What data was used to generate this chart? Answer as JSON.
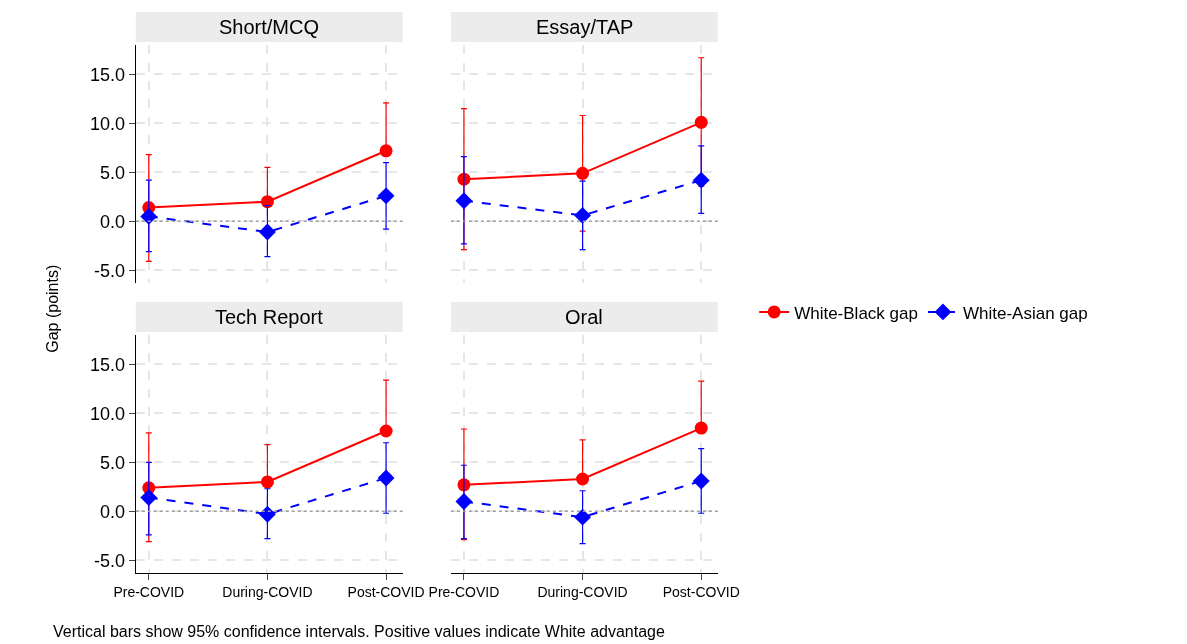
{
  "chart_data": [
    {
      "type": "line",
      "title": "Short/MCQ",
      "ylabel": "Gap (points)",
      "categories": [
        "Pre-COVID",
        "During-COVID",
        "Post-COVID"
      ],
      "ylim": [
        -6.3,
        18
      ],
      "yticks": [
        {
          "value": -5,
          "label": "-5.0"
        },
        {
          "value": 0,
          "label": "0.0"
        },
        {
          "value": 5,
          "label": "5.0"
        },
        {
          "value": 10,
          "label": "10.0"
        },
        {
          "value": 15,
          "label": "15.0"
        }
      ],
      "tick_labels": "y",
      "grid": true,
      "legend": "right",
      "ref_lines": [
        {
          "axis": "y",
          "value": 0,
          "color": "#a0a0a0",
          "line_style": "dotted"
        }
      ],
      "annotations": [
        "Vertical bars show 95% confidence intervals. Positive values indicate White advantage"
      ],
      "series": [
        {
          "name": "White-Black gap",
          "color": "#ff0000",
          "marker": "circle",
          "line_style": "solid",
          "values": [
            1.4,
            2.0,
            7.2
          ],
          "errors": [
            [
              -4.1,
              6.8
            ],
            [
              2.0,
              5.5
            ],
            [
              7.2,
              12.1
            ]
          ]
        },
        {
          "name": "White-Asian gap",
          "color": "#0000ff",
          "marker": "diamond",
          "line_style": "dashed",
          "values": [
            0.5,
            -1.1,
            2.6
          ],
          "errors": [
            [
              -3.1,
              4.2
            ],
            [
              -3.6,
              1.6
            ],
            [
              -0.8,
              6.0
            ]
          ]
        }
      ]
    },
    {
      "type": "line",
      "title": "Essay/TAP",
      "categories": [
        "Pre-COVID",
        "During-COVID",
        "Post-COVID"
      ],
      "ylim": [
        -6.3,
        18
      ],
      "yticks": [
        {
          "value": -5,
          "label": "-5.0"
        },
        {
          "value": 0,
          "label": "0.0"
        },
        {
          "value": 5,
          "label": "5.0"
        },
        {
          "value": 10,
          "label": "10.0"
        },
        {
          "value": 15,
          "label": "15.0"
        }
      ],
      "tick_labels": false,
      "grid": true,
      "ref_lines": [
        {
          "axis": "y",
          "value": 0,
          "color": "#a0a0a0",
          "line_style": "dotted"
        }
      ],
      "series": [
        {
          "name": "White-Black gap",
          "color": "#ff0000",
          "marker": "circle",
          "line_style": "solid",
          "values": [
            4.3,
            4.9,
            10.1
          ],
          "errors": [
            [
              -2.9,
              11.5
            ],
            [
              -1.0,
              10.8
            ],
            [
              3.6,
              16.7
            ]
          ]
        },
        {
          "name": "White-Asian gap",
          "color": "#0000ff",
          "marker": "diamond",
          "line_style": "dashed",
          "values": [
            2.1,
            0.6,
            4.2
          ],
          "errors": [
            [
              -2.3,
              6.6
            ],
            [
              -2.9,
              4.1
            ],
            [
              0.8,
              7.7
            ]
          ]
        }
      ]
    },
    {
      "type": "line",
      "title": "Tech Report",
      "categories": [
        "Pre-COVID",
        "During-COVID",
        "Post-COVID"
      ],
      "ylim": [
        -6.3,
        18
      ],
      "yticks": [
        {
          "value": -5,
          "label": "-5.0"
        },
        {
          "value": 0,
          "label": "0.0"
        },
        {
          "value": 5,
          "label": "5.0"
        },
        {
          "value": 10,
          "label": "10.0"
        },
        {
          "value": 15,
          "label": "15.0"
        }
      ],
      "grid": true,
      "ref_lines": [
        {
          "axis": "y",
          "value": 0,
          "color": "#a0a0a0",
          "line_style": "dotted"
        }
      ],
      "series": [
        {
          "name": "White-Black gap",
          "color": "#ff0000",
          "marker": "circle",
          "line_style": "solid",
          "values": [
            2.4,
            3.0,
            8.2
          ],
          "errors": [
            [
              -3.1,
              8.0
            ],
            [
              3.0,
              6.8
            ],
            [
              8.2,
              13.4
            ]
          ]
        },
        {
          "name": "White-Asian gap",
          "color": "#0000ff",
          "marker": "diamond",
          "line_style": "dashed",
          "values": [
            1.4,
            -0.3,
            3.4
          ],
          "errors": [
            [
              -2.4,
              5.0
            ],
            [
              -2.8,
              2.3
            ],
            [
              -0.2,
              7.0
            ]
          ]
        }
      ]
    },
    {
      "type": "line",
      "title": "Oral",
      "categories": [
        "Pre-COVID",
        "During-COVID",
        "Post-COVID"
      ],
      "ylim": [
        -6.3,
        18
      ],
      "yticks": [
        {
          "value": -5,
          "label": "-5.0"
        },
        {
          "value": 0,
          "label": "0.0"
        },
        {
          "value": 5,
          "label": "5.0"
        },
        {
          "value": 10,
          "label": "10.0"
        },
        {
          "value": 15,
          "label": "15.0"
        }
      ],
      "tick_labels": "x",
      "grid": true,
      "ref_lines": [
        {
          "axis": "y",
          "value": 0,
          "color": "#a0a0a0",
          "line_style": "dotted"
        }
      ],
      "series": [
        {
          "name": "White-Black gap",
          "color": "#ff0000",
          "marker": "circle",
          "line_style": "solid",
          "values": [
            2.7,
            3.3,
            8.5
          ],
          "errors": [
            [
              -2.9,
              8.4
            ],
            [
              3.3,
              7.3
            ],
            [
              8.5,
              13.3
            ]
          ]
        },
        {
          "name": "White-Asian gap",
          "color": "#0000ff",
          "marker": "diamond",
          "line_style": "dashed",
          "values": [
            1.0,
            -0.6,
            3.1
          ],
          "errors": [
            [
              -2.8,
              4.7
            ],
            [
              -3.3,
              2.1
            ],
            [
              -0.2,
              6.4
            ]
          ]
        }
      ]
    }
  ]
}
